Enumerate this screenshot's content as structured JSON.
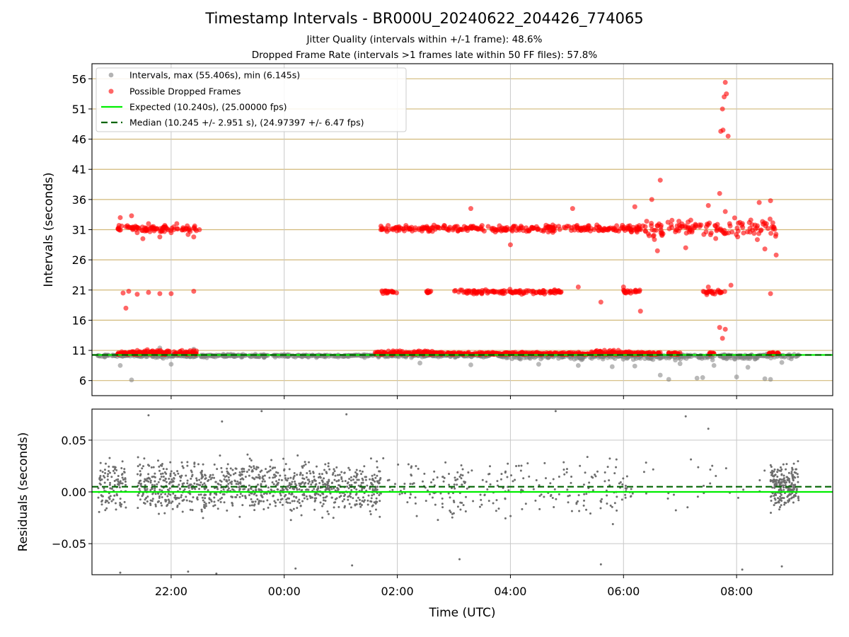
{
  "title": "Timestamp Intervals - BR000U_20240622_204426_774065",
  "subtitle1": "Jitter Quality (intervals within +/-1 frame): 48.6%",
  "subtitle2": "Dropped Frame Rate (intervals >1 frames late within 50 FF files): 57.8%",
  "colors": {
    "intervals": "#808080",
    "dropped": "#ff0000",
    "expected": "#00ee00",
    "median": "#006400",
    "hgrid_top": "#d2b97a",
    "vgrid": "#c8c8c8",
    "residuals": "#6e6e6e"
  },
  "chart_data": [
    {
      "type": "scatter",
      "panel": "top",
      "ylabel": "Intervals (seconds)",
      "xlim": [
        -3.4,
        9.7
      ],
      "ylim": [
        3.5,
        58.5
      ],
      "yticks": [
        "6",
        "11",
        "16",
        "21",
        "26",
        "31",
        "36",
        "41",
        "46",
        "51",
        "56"
      ],
      "ytick_values": [
        6,
        11,
        16,
        21,
        26,
        31,
        36,
        41,
        46,
        51,
        56
      ],
      "xtick_values": [
        -2,
        0,
        2,
        4,
        6,
        8
      ],
      "legend": {
        "placement": "upper-left",
        "entries": [
          "Intervals, max (55.406s), min (6.145s)",
          "Possible Dropped Frames",
          "Expected (10.240s), (25.00000 fps)",
          "Median (10.245 +/- 2.951 s), (24.97397 +/- 6.47 fps)"
        ]
      },
      "expected": 10.24,
      "median": 10.245,
      "series": [
        {
          "name": "Intervals, max (55.406s), min (6.145s)",
          "approx_band_ranges_utc_hours": [
            [
              -3.3,
              -1.4
            ],
            [
              -1.5,
              1.6
            ],
            [
              1.6,
              9.1
            ]
          ],
          "points": [
            [
              -2.7,
              6.1
            ],
            [
              6.65,
              6.9
            ],
            [
              6.8,
              6.2
            ],
            [
              7.3,
              6.4
            ],
            [
              7.4,
              6.5
            ],
            [
              8.0,
              6.6
            ],
            [
              8.5,
              6.3
            ],
            [
              8.6,
              6.2
            ],
            [
              -2.9,
              8.5
            ],
            [
              -2.0,
              8.7
            ],
            [
              2.4,
              8.9
            ],
            [
              3.3,
              8.6
            ],
            [
              4.5,
              8.7
            ],
            [
              5.2,
              8.5
            ],
            [
              5.8,
              8.3
            ],
            [
              6.2,
              8.4
            ],
            [
              7.0,
              8.8
            ],
            [
              7.6,
              8.5
            ],
            [
              8.2,
              8.2
            ],
            [
              8.8,
              9.0
            ],
            [
              -1.6,
              11.2
            ],
            [
              -2.2,
              11.4
            ]
          ]
        },
        {
          "name": "Possible Dropped Frames",
          "points": [
            [
              -2.9,
              33.0
            ],
            [
              -2.8,
              31.5
            ],
            [
              -2.7,
              33.3
            ],
            [
              -2.6,
              30.5
            ],
            [
              -2.5,
              29.5
            ],
            [
              -2.4,
              32.0
            ],
            [
              -2.3,
              30.8
            ],
            [
              -2.2,
              29.8
            ],
            [
              -2.1,
              31.5
            ],
            [
              -2.0,
              30.5
            ],
            [
              -1.9,
              32.0
            ],
            [
              -1.8,
              31.0
            ],
            [
              -1.7,
              30.2
            ],
            [
              -1.6,
              29.8
            ],
            [
              -1.5,
              31.0
            ],
            [
              -2.85,
              20.5
            ],
            [
              -2.75,
              20.8
            ],
            [
              -2.6,
              20.3
            ],
            [
              -2.4,
              20.6
            ],
            [
              -2.2,
              20.4
            ],
            [
              -2.0,
              20.4
            ],
            [
              -1.6,
              20.8
            ],
            [
              -2.8,
              18.0
            ],
            [
              7.8,
              55.4
            ],
            [
              7.82,
              53.5
            ],
            [
              7.78,
              53.0
            ],
            [
              7.75,
              51.0
            ],
            [
              7.72,
              47.3
            ],
            [
              7.76,
              47.5
            ],
            [
              7.85,
              46.5
            ],
            [
              6.65,
              39.2
            ],
            [
              7.7,
              37.0
            ],
            [
              6.5,
              36.0
            ],
            [
              7.5,
              35.0
            ],
            [
              8.4,
              35.5
            ],
            [
              8.6,
              35.8
            ],
            [
              5.1,
              34.5
            ],
            [
              3.3,
              34.5
            ],
            [
              6.2,
              34.8
            ],
            [
              7.8,
              34.0
            ],
            [
              4.0,
              28.5
            ],
            [
              6.6,
              27.5
            ],
            [
              7.1,
              28.0
            ],
            [
              8.7,
              26.8
            ],
            [
              8.5,
              27.8
            ],
            [
              6.3,
              17.5
            ],
            [
              5.6,
              19.0
            ],
            [
              7.7,
              14.8
            ],
            [
              7.8,
              14.5
            ],
            [
              7.75,
              13.0
            ],
            [
              8.6,
              20.4
            ],
            [
              6.0,
              21.5
            ],
            [
              7.5,
              21.5
            ],
            [
              7.9,
              21.8
            ],
            [
              5.2,
              21.5
            ]
          ]
        }
      ]
    },
    {
      "type": "scatter",
      "panel": "bottom",
      "ylabel": "Residuals (seconds)",
      "xlabel": "Time (UTC)",
      "xlim": [
        -3.4,
        9.7
      ],
      "ylim": [
        -0.08,
        0.08
      ],
      "yticks": [
        "0.05",
        "0.00",
        "−0.05"
      ],
      "ytick_values": [
        0.05,
        0.0,
        -0.05
      ],
      "xticks": [
        "22:00",
        "00:00",
        "02:00",
        "04:00",
        "06:00",
        "08:00"
      ],
      "xtick_values": [
        -2,
        0,
        2,
        4,
        6,
        8
      ],
      "expected": 0.0,
      "median": 0.005,
      "series": [
        {
          "name": "Residuals",
          "approx_band_ranges_utc_hours": [
            [
              -3.3,
              -2.8
            ],
            [
              -2.6,
              1.7
            ],
            [
              1.7,
              6.2
            ],
            [
              8.6,
              9.1
            ]
          ],
          "approx_range": [
            -0.08,
            0.08
          ],
          "points": [
            [
              -2.4,
              0.074
            ],
            [
              -1.1,
              0.068
            ],
            [
              -0.4,
              0.078
            ],
            [
              1.1,
              0.075
            ],
            [
              4.8,
              0.078
            ],
            [
              7.1,
              0.073
            ],
            [
              7.5,
              0.061
            ],
            [
              -2.9,
              -0.078
            ],
            [
              -1.7,
              -0.077
            ],
            [
              -1.2,
              -0.079
            ],
            [
              0.2,
              -0.074
            ],
            [
              1.2,
              -0.071
            ],
            [
              3.1,
              -0.065
            ],
            [
              5.6,
              -0.07
            ],
            [
              8.1,
              -0.075
            ],
            [
              8.8,
              -0.072
            ]
          ]
        }
      ]
    }
  ]
}
